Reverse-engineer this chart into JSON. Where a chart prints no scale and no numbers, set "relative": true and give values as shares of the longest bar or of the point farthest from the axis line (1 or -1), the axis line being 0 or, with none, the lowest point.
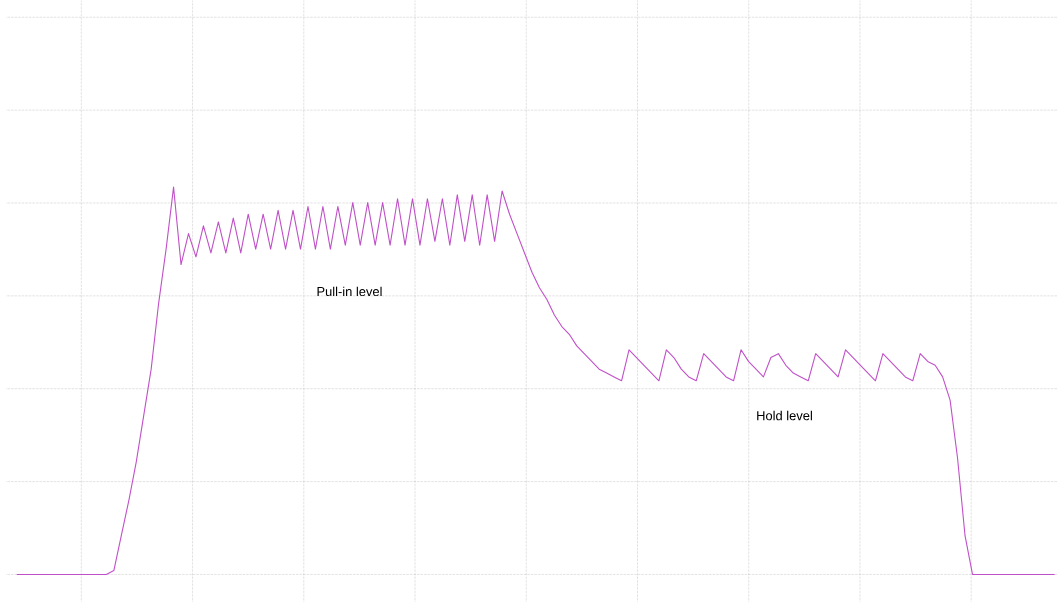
{
  "chart_data": {
    "type": "line",
    "relative": true,
    "grid": true,
    "color": "#c050c8",
    "annotations": [
      "Pull-in level",
      "Hold level"
    ],
    "categories": [
      null,
      null,
      null,
      null,
      null,
      null,
      null,
      null,
      null,
      null,
      null,
      null,
      null,
      null,
      null,
      null,
      null,
      null,
      null,
      null,
      null,
      null,
      null,
      null,
      null,
      null,
      null,
      null,
      null,
      null,
      null,
      null,
      null,
      null,
      null,
      null,
      null,
      null,
      null,
      null,
      null,
      null,
      null,
      null,
      null,
      null,
      null,
      null,
      null,
      null,
      null,
      null,
      null,
      null,
      null,
      null,
      null,
      null,
      null,
      null,
      null,
      null,
      null,
      null,
      null,
      null,
      null,
      null,
      null,
      null,
      null,
      null,
      null,
      null,
      null,
      null,
      null,
      null,
      null,
      null,
      null,
      null,
      null,
      null,
      null,
      null,
      null,
      null,
      null,
      null,
      null,
      null,
      null,
      null,
      null,
      null,
      null,
      null,
      null,
      null,
      null,
      null,
      null,
      null,
      null,
      null,
      null,
      null,
      null,
      null,
      null,
      null,
      null,
      null,
      null,
      null,
      null,
      null,
      null,
      null,
      null,
      null,
      null,
      null,
      null,
      null,
      null,
      null,
      null,
      null,
      null,
      null,
      null,
      null,
      null,
      null,
      null,
      null,
      null,
      null
    ],
    "values": [
      0,
      0,
      0,
      0,
      0,
      0,
      0,
      0,
      0,
      0,
      0,
      0,
      0,
      0.01,
      0.1,
      0.19,
      0.29,
      0.41,
      0.53,
      0.7,
      0.84,
      1.0,
      0.8,
      0.88,
      0.82,
      0.9,
      0.83,
      0.91,
      0.83,
      0.92,
      0.83,
      0.93,
      0.84,
      0.93,
      0.84,
      0.94,
      0.84,
      0.94,
      0.84,
      0.95,
      0.84,
      0.95,
      0.84,
      0.95,
      0.85,
      0.96,
      0.85,
      0.96,
      0.85,
      0.96,
      0.85,
      0.97,
      0.85,
      0.97,
      0.85,
      0.97,
      0.86,
      0.97,
      0.85,
      0.98,
      0.86,
      0.98,
      0.85,
      0.98,
      0.86,
      0.99,
      0.93,
      0.88,
      0.83,
      0.78,
      0.74,
      0.71,
      0.67,
      0.64,
      0.62,
      0.59,
      0.57,
      0.55,
      0.53,
      0.52,
      0.51,
      0.5,
      0.58,
      0.56,
      0.54,
      0.52,
      0.5,
      0.58,
      0.56,
      0.53,
      0.51,
      0.5,
      0.57,
      0.55,
      0.53,
      0.51,
      0.5,
      0.58,
      0.55,
      0.53,
      0.51,
      0.56,
      0.57,
      0.54,
      0.52,
      0.51,
      0.5,
      0.57,
      0.55,
      0.53,
      0.51,
      0.58,
      0.56,
      0.54,
      0.52,
      0.5,
      0.57,
      0.55,
      0.53,
      0.51,
      0.5,
      0.57,
      0.55,
      0.54,
      0.51,
      0.45,
      0.3,
      0.1,
      0,
      0,
      0,
      0,
      0,
      0,
      0,
      0,
      0,
      0,
      0,
      0
    ]
  }
}
